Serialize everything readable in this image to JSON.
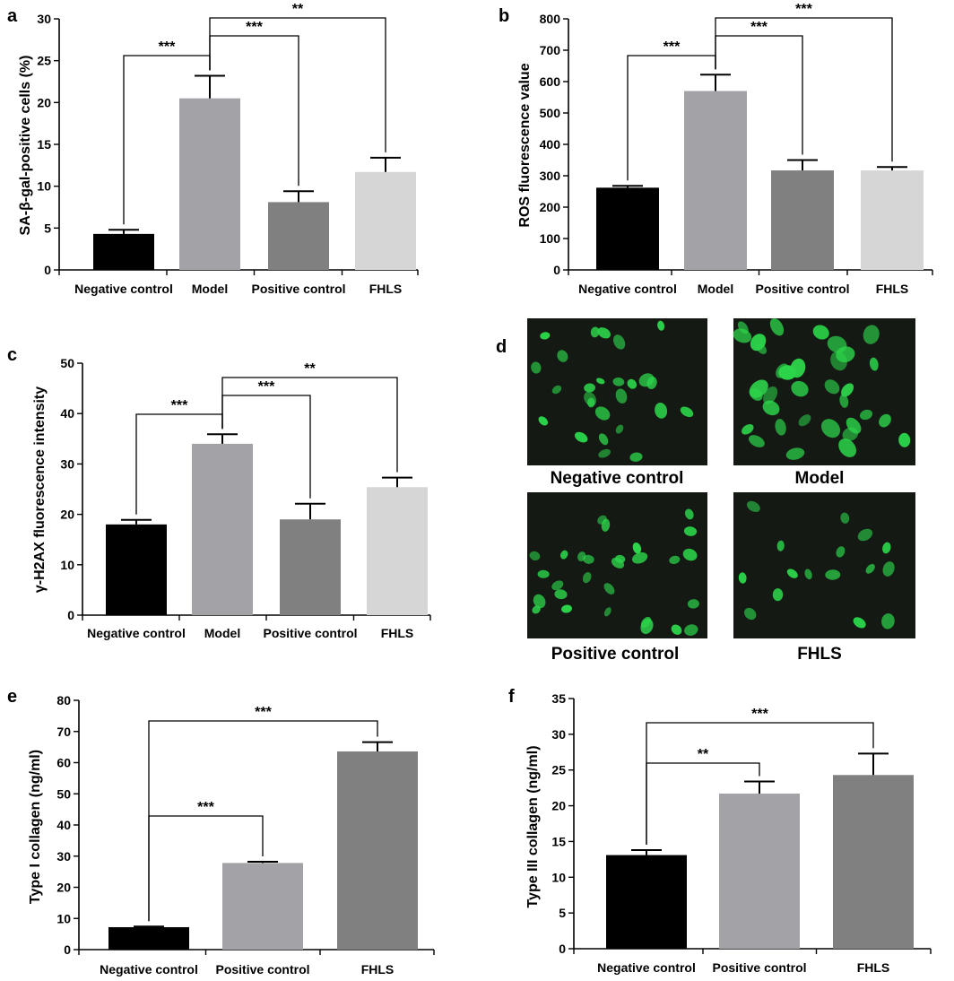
{
  "chart_data": [
    {
      "id": "a",
      "panel_label": "a",
      "type": "bar",
      "ylabel": "SA-β-gal-positive cells (%)",
      "ylim": [
        0,
        30
      ],
      "yticks": [
        0,
        5,
        10,
        15,
        20,
        25,
        30
      ],
      "categories": [
        "Negative control",
        "Model",
        "Positive control",
        "FHLS"
      ],
      "values": [
        4.3,
        20.5,
        8.1,
        11.7
      ],
      "errors": [
        0.5,
        2.7,
        1.3,
        1.7
      ],
      "colors": [
        "#000000",
        "#a2a2a7",
        "#808080",
        "#d6d6d6"
      ],
      "significance": [
        {
          "from": 1,
          "to": 0,
          "label": "***"
        },
        {
          "from": 1,
          "to": 2,
          "label": "***"
        },
        {
          "from": 1,
          "to": 3,
          "label": "**"
        }
      ]
    },
    {
      "id": "b",
      "panel_label": "b",
      "type": "bar",
      "ylabel": "ROS fluorescence value",
      "ylim": [
        0,
        800
      ],
      "yticks": [
        0,
        100,
        200,
        300,
        400,
        500,
        600,
        700,
        800
      ],
      "categories": [
        "Negative control",
        "Model",
        "Positive control",
        "FHLS"
      ],
      "values": [
        262,
        570,
        317,
        317
      ],
      "errors": [
        6,
        52,
        33,
        11
      ],
      "colors": [
        "#000000",
        "#a2a2a7",
        "#808080",
        "#d6d6d6"
      ],
      "significance": [
        {
          "from": 1,
          "to": 0,
          "label": "***"
        },
        {
          "from": 1,
          "to": 2,
          "label": "***"
        },
        {
          "from": 1,
          "to": 3,
          "label": "***"
        }
      ]
    },
    {
      "id": "c",
      "panel_label": "c",
      "type": "bar",
      "ylabel": "γ-H2AX fluorescence intensity",
      "ylim": [
        0,
        50
      ],
      "yticks": [
        0,
        10,
        20,
        30,
        40,
        50
      ],
      "categories": [
        "Negative control",
        "Model",
        "Positive control",
        "FHLS"
      ],
      "values": [
        18,
        34,
        19,
        25.4
      ],
      "errors": [
        0.9,
        1.9,
        3.1,
        1.9
      ],
      "colors": [
        "#000000",
        "#a2a2a7",
        "#808080",
        "#d6d6d6"
      ],
      "significance": [
        {
          "from": 1,
          "to": 0,
          "label": "***"
        },
        {
          "from": 1,
          "to": 2,
          "label": "***"
        },
        {
          "from": 1,
          "to": 3,
          "label": "**"
        }
      ]
    },
    {
      "id": "e",
      "panel_label": "e",
      "type": "bar",
      "ylabel": "Type I collagen (ng/ml)",
      "ylim": [
        0,
        80
      ],
      "yticks": [
        0,
        10,
        20,
        30,
        40,
        50,
        60,
        70,
        80
      ],
      "categories": [
        "Negative control",
        "Positive control",
        "FHLS"
      ],
      "values": [
        7.2,
        27.8,
        63.6
      ],
      "errors": [
        0.2,
        0.4,
        3.0
      ],
      "colors": [
        "#000000",
        "#a2a2a7",
        "#808080"
      ],
      "significance": [
        {
          "from": 0,
          "to": 1,
          "label": "***"
        },
        {
          "from": 0,
          "to": 2,
          "label": "***"
        }
      ]
    },
    {
      "id": "f",
      "panel_label": "f",
      "type": "bar",
      "ylabel": "Type III collagen (ng/ml)",
      "ylim": [
        0,
        35
      ],
      "yticks": [
        0,
        5,
        10,
        15,
        20,
        25,
        30,
        35
      ],
      "categories": [
        "Negative control",
        "Positive control",
        "FHLS"
      ],
      "values": [
        13.1,
        21.7,
        24.3
      ],
      "errors": [
        0.7,
        1.7,
        3.0
      ],
      "colors": [
        "#000000",
        "#a2a2a7",
        "#808080"
      ],
      "significance": [
        {
          "from": 0,
          "to": 1,
          "label": "**"
        },
        {
          "from": 0,
          "to": 2,
          "label": "***"
        }
      ]
    }
  ],
  "micrographs": {
    "panel_label": "d",
    "background": "#141914",
    "nucleus_color": "#2cd44a",
    "images": [
      {
        "label": "Negative control",
        "cells": 26
      },
      {
        "label": "Model",
        "cells": 34
      },
      {
        "label": "Positive control",
        "cells": 28
      },
      {
        "label": "FHLS",
        "cells": 16
      }
    ]
  }
}
